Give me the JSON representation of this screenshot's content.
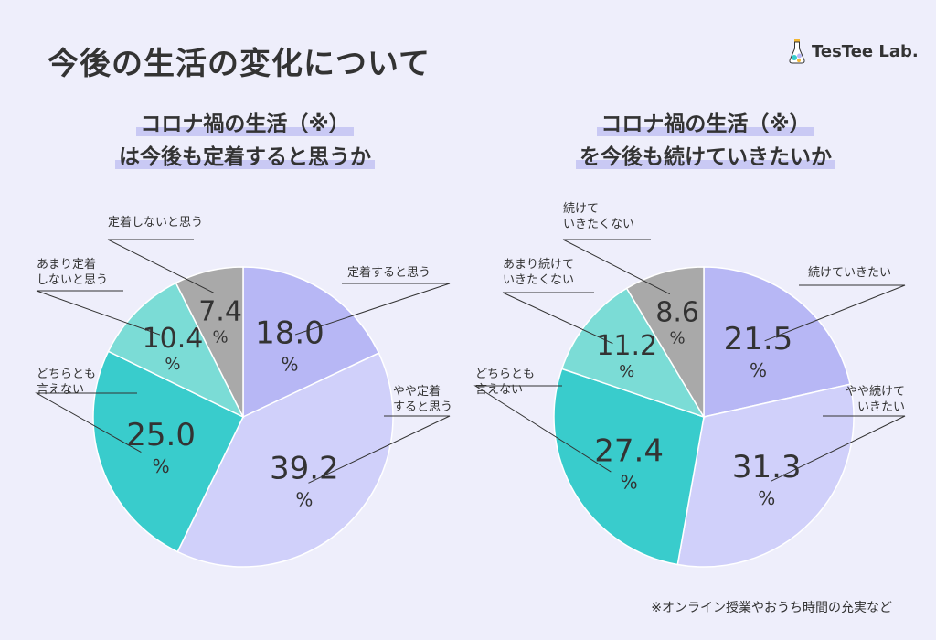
{
  "page_title": "今後の生活の変化について",
  "logo_text": "TesTee Lab.",
  "footnote": "※オンライン授業やおうち時間の充実など",
  "colors": {
    "c1": "#b7b7f5",
    "c2": "#d0d0fa",
    "c3": "#39cccc",
    "c4": "#7bdcd6",
    "c5": "#a9a9a9"
  },
  "chart_data": [
    {
      "type": "pie",
      "title_lines": [
        "コロナ禍の生活（※）",
        "は今後も定着すると思うか"
      ],
      "unit": "%",
      "slices": [
        {
          "label_lines": [
            "定着すると思う"
          ],
          "value": 18.0,
          "value_text": "18.0",
          "color": "#b7b7f5"
        },
        {
          "label_lines": [
            "やや定着",
            "すると思う"
          ],
          "value": 39.2,
          "value_text": "39.2",
          "color": "#d0d0fa"
        },
        {
          "label_lines": [
            "どちらとも",
            "言えない"
          ],
          "value": 25.0,
          "value_text": "25.0",
          "color": "#39cccc"
        },
        {
          "label_lines": [
            "あまり定着",
            "しないと思う"
          ],
          "value": 10.4,
          "value_text": "10.4",
          "color": "#7bdcd6"
        },
        {
          "label_lines": [
            "定着しないと思う"
          ],
          "value": 7.4,
          "value_text": "7.4",
          "color": "#a9a9a9"
        }
      ]
    },
    {
      "type": "pie",
      "title_lines": [
        "コロナ禍の生活（※）",
        "を今後も続けていきたいか"
      ],
      "unit": "%",
      "slices": [
        {
          "label_lines": [
            "続けていきたい"
          ],
          "value": 21.5,
          "value_text": "21.5",
          "color": "#b7b7f5"
        },
        {
          "label_lines": [
            "やや続けて",
            "いきたい"
          ],
          "value": 31.3,
          "value_text": "31.3",
          "color": "#d0d0fa"
        },
        {
          "label_lines": [
            "どちらとも",
            "言えない"
          ],
          "value": 27.4,
          "value_text": "27.4",
          "color": "#39cccc"
        },
        {
          "label_lines": [
            "あまり続けて",
            "いきたくない"
          ],
          "value": 11.2,
          "value_text": "11.2",
          "color": "#7bdcd6"
        },
        {
          "label_lines": [
            "続けて",
            "いきたくない"
          ],
          "value": 8.6,
          "value_text": "8.6",
          "color": "#a9a9a9"
        }
      ]
    }
  ]
}
